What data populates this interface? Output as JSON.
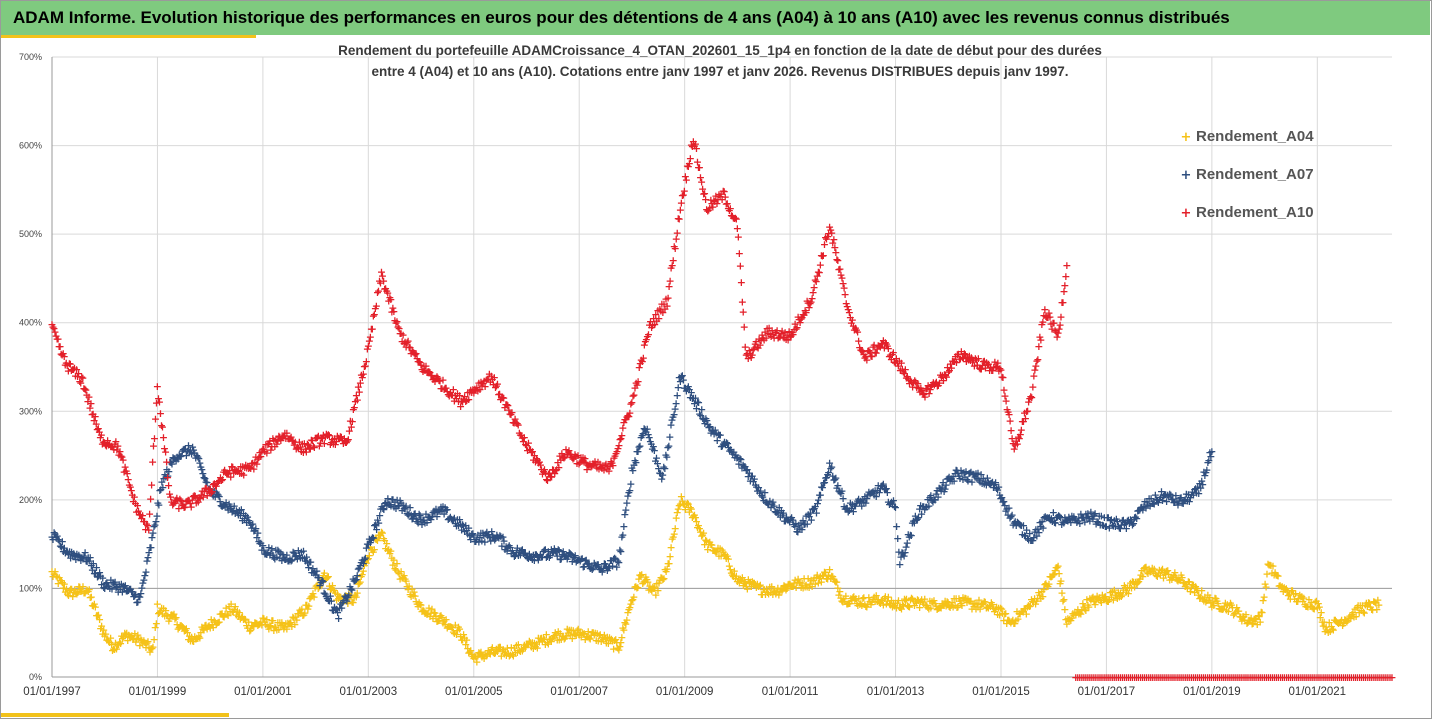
{
  "header": {
    "title": "ADAM Informe. Evolution historique des performances en euros pour des détentions de 4 ans (A04) à 10 ans (A10) avec les revenus connus distribués"
  },
  "colors": {
    "header_bg": "#7fca7f",
    "accent": "#f2c21b",
    "A04": "#f5c218",
    "A07": "#2f4f7f",
    "A10": "#e3202a"
  },
  "chart_data": {
    "type": "scatter",
    "title_lines": [
      "Rendement du portefeuille ADAMCroissance_4_OTAN_202601_15_1p4  en fonction de la date de début pour des durées",
      "entre 4 (A04) et 10 ans (A10). Cotations entre janv 1997 et janv 2026. Revenus DISTRIBUES depuis janv 1997."
    ],
    "x_type": "date",
    "xlim": [
      "1997-01-01",
      "2022-06-01"
    ],
    "x_tick_labels": [
      "01/01/1997",
      "01/01/1999",
      "01/01/2001",
      "01/01/2003",
      "01/01/2005",
      "01/01/2007",
      "01/01/2009",
      "01/01/2011",
      "01/01/2013",
      "01/01/2015",
      "01/01/2017",
      "01/01/2019",
      "01/01/2021"
    ],
    "ylim": [
      0,
      700
    ],
    "y_tick_values": [
      0,
      100,
      200,
      300,
      400,
      500,
      600,
      700
    ],
    "y_tick_labels": [
      "0%",
      "100%",
      "200%",
      "300%",
      "400%",
      "500%",
      "600%",
      "700%"
    ],
    "reference_line": 100,
    "grid": true,
    "legend_position": "right",
    "marker": "+",
    "series": [
      {
        "name": "Rendement_A04",
        "key": "A04",
        "points": [
          [
            "1997-01",
            118
          ],
          [
            "1997-05",
            95
          ],
          [
            "1997-09",
            100
          ],
          [
            "1998-01",
            48
          ],
          [
            "1998-03",
            35
          ],
          [
            "1998-06",
            48
          ],
          [
            "1998-09",
            42
          ],
          [
            "1998-12",
            30
          ],
          [
            "1999-01",
            78
          ],
          [
            "1999-05",
            65
          ],
          [
            "1999-09",
            42
          ],
          [
            "2000-01",
            60
          ],
          [
            "2000-06",
            78
          ],
          [
            "2000-10",
            58
          ],
          [
            "2001-01",
            62
          ],
          [
            "2001-06",
            55
          ],
          [
            "2001-11",
            78
          ],
          [
            "2002-03",
            118
          ],
          [
            "2002-06",
            90
          ],
          [
            "2002-10",
            88
          ],
          [
            "2003-01",
            140
          ],
          [
            "2003-04",
            160
          ],
          [
            "2003-08",
            118
          ],
          [
            "2004-01",
            80
          ],
          [
            "2004-06",
            65
          ],
          [
            "2004-10",
            50
          ],
          [
            "2005-01",
            22
          ],
          [
            "2005-05",
            28
          ],
          [
            "2005-10",
            30
          ],
          [
            "2006-03",
            38
          ],
          [
            "2006-08",
            48
          ],
          [
            "2007-01",
            50
          ],
          [
            "2007-06",
            45
          ],
          [
            "2007-10",
            35
          ],
          [
            "2008-01",
            88
          ],
          [
            "2008-03",
            115
          ],
          [
            "2008-06",
            95
          ],
          [
            "2008-09",
            120
          ],
          [
            "2008-12",
            200
          ],
          [
            "2009-03",
            185
          ],
          [
            "2009-06",
            150
          ],
          [
            "2009-10",
            138
          ],
          [
            "2010-01",
            110
          ],
          [
            "2010-06",
            100
          ],
          [
            "2010-10",
            98
          ],
          [
            "2011-01",
            105
          ],
          [
            "2011-06",
            108
          ],
          [
            "2011-10",
            118
          ],
          [
            "2012-01",
            90
          ],
          [
            "2012-06",
            85
          ],
          [
            "2012-10",
            88
          ],
          [
            "2013-01",
            82
          ],
          [
            "2013-06",
            85
          ],
          [
            "2013-10",
            82
          ],
          [
            "2014-03",
            85
          ],
          [
            "2014-08",
            82
          ],
          [
            "2014-12",
            78
          ],
          [
            "2015-03",
            62
          ],
          [
            "2015-07",
            78
          ],
          [
            "2015-11",
            100
          ],
          [
            "2016-02",
            125
          ],
          [
            "2016-04",
            62
          ],
          [
            "2016-09",
            85
          ],
          [
            "2017-01",
            90
          ],
          [
            "2017-06",
            100
          ],
          [
            "2017-10",
            120
          ],
          [
            "2018-02",
            118
          ],
          [
            "2018-06",
            110
          ],
          [
            "2018-10",
            95
          ],
          [
            "2019-01",
            85
          ],
          [
            "2019-05",
            80
          ],
          [
            "2019-09",
            65
          ],
          [
            "2019-12",
            65
          ],
          [
            "2020-02",
            130
          ],
          [
            "2020-05",
            100
          ],
          [
            "2020-09",
            88
          ],
          [
            "2021-01",
            82
          ],
          [
            "2021-03",
            55
          ],
          [
            "2021-07",
            65
          ],
          [
            "2021-11",
            78
          ],
          [
            "2022-03",
            82
          ]
        ]
      },
      {
        "name": "Rendement_A07",
        "key": "A07",
        "points": [
          [
            "1997-01",
            160
          ],
          [
            "1997-05",
            140
          ],
          [
            "1997-09",
            135
          ],
          [
            "1998-01",
            105
          ],
          [
            "1998-05",
            102
          ],
          [
            "1998-09",
            88
          ],
          [
            "1998-12",
            160
          ],
          [
            "1999-02",
            218
          ],
          [
            "1999-05",
            250
          ],
          [
            "1999-09",
            258
          ],
          [
            "2000-01",
            210
          ],
          [
            "2000-06",
            190
          ],
          [
            "2000-10",
            178
          ],
          [
            "2001-01",
            145
          ],
          [
            "2001-06",
            135
          ],
          [
            "2001-10",
            140
          ],
          [
            "2002-02",
            110
          ],
          [
            "2002-06",
            70
          ],
          [
            "2002-10",
            110
          ],
          [
            "2003-01",
            148
          ],
          [
            "2003-05",
            200
          ],
          [
            "2003-08",
            195
          ],
          [
            "2004-01",
            178
          ],
          [
            "2004-06",
            188
          ],
          [
            "2004-10",
            172
          ],
          [
            "2005-01",
            158
          ],
          [
            "2005-06",
            160
          ],
          [
            "2005-10",
            142
          ],
          [
            "2006-03",
            138
          ],
          [
            "2006-08",
            140
          ],
          [
            "2007-01",
            132
          ],
          [
            "2007-06",
            122
          ],
          [
            "2007-10",
            132
          ],
          [
            "2008-01",
            232
          ],
          [
            "2008-04",
            285
          ],
          [
            "2008-08",
            225
          ],
          [
            "2008-12",
            340
          ],
          [
            "2009-03",
            315
          ],
          [
            "2009-07",
            280
          ],
          [
            "2009-11",
            258
          ],
          [
            "2010-03",
            235
          ],
          [
            "2010-07",
            205
          ],
          [
            "2010-11",
            185
          ],
          [
            "2011-03",
            168
          ],
          [
            "2011-07",
            190
          ],
          [
            "2011-10",
            240
          ],
          [
            "2012-02",
            190
          ],
          [
            "2012-06",
            200
          ],
          [
            "2012-10",
            215
          ],
          [
            "2013-01",
            190
          ],
          [
            "2013-02",
            130
          ],
          [
            "2013-06",
            185
          ],
          [
            "2013-10",
            205
          ],
          [
            "2014-03",
            230
          ],
          [
            "2014-08",
            225
          ],
          [
            "2014-12",
            215
          ],
          [
            "2015-04",
            175
          ],
          [
            "2015-08",
            158
          ],
          [
            "2015-12",
            182
          ],
          [
            "2016-04",
            175
          ],
          [
            "2016-09",
            182
          ],
          [
            "2017-01",
            175
          ],
          [
            "2017-06",
            172
          ],
          [
            "2017-10",
            195
          ],
          [
            "2018-02",
            205
          ],
          [
            "2018-06",
            198
          ],
          [
            "2018-10",
            210
          ],
          [
            "2019-01",
            255
          ]
        ]
      },
      {
        "name": "Rendement_A10",
        "key": "A10",
        "points": [
          [
            "1997-01",
            395
          ],
          [
            "1997-04",
            355
          ],
          [
            "1997-08",
            335
          ],
          [
            "1997-12",
            270
          ],
          [
            "1998-04",
            260
          ],
          [
            "1998-08",
            195
          ],
          [
            "1998-11",
            165
          ],
          [
            "1999-01",
            330
          ],
          [
            "1999-04",
            198
          ],
          [
            "1999-08",
            195
          ],
          [
            "2000-01",
            212
          ],
          [
            "2000-05",
            232
          ],
          [
            "2000-10",
            235
          ],
          [
            "2001-01",
            255
          ],
          [
            "2001-06",
            275
          ],
          [
            "2001-10",
            258
          ],
          [
            "2002-03",
            270
          ],
          [
            "2002-08",
            265
          ],
          [
            "2003-01",
            370
          ],
          [
            "2003-04",
            455
          ],
          [
            "2003-08",
            390
          ],
          [
            "2004-01",
            352
          ],
          [
            "2004-06",
            330
          ],
          [
            "2004-10",
            312
          ],
          [
            "2005-01",
            325
          ],
          [
            "2005-05",
            340
          ],
          [
            "2005-09",
            300
          ],
          [
            "2006-01",
            262
          ],
          [
            "2006-06",
            225
          ],
          [
            "2006-10",
            255
          ],
          [
            "2007-03",
            240
          ],
          [
            "2007-08",
            235
          ],
          [
            "2008-01",
            310
          ],
          [
            "2008-05",
            395
          ],
          [
            "2008-09",
            425
          ],
          [
            "2008-12",
            530
          ],
          [
            "2009-03",
            610
          ],
          [
            "2009-06",
            530
          ],
          [
            "2009-10",
            545
          ],
          [
            "2010-01",
            510
          ],
          [
            "2010-03",
            360
          ],
          [
            "2010-08",
            390
          ],
          [
            "2011-01",
            385
          ],
          [
            "2011-06",
            430
          ],
          [
            "2011-10",
            510
          ],
          [
            "2012-02",
            420
          ],
          [
            "2012-06",
            360
          ],
          [
            "2012-10",
            378
          ],
          [
            "2013-03",
            345
          ],
          [
            "2013-07",
            320
          ],
          [
            "2013-11",
            335
          ],
          [
            "2014-04",
            365
          ],
          [
            "2014-09",
            352
          ],
          [
            "2015-01",
            350
          ],
          [
            "2015-04",
            255
          ],
          [
            "2015-08",
            320
          ],
          [
            "2015-11",
            415
          ],
          [
            "2016-02",
            385
          ],
          [
            "2016-04",
            465
          ]
        ]
      }
    ],
    "zero_band": {
      "series": "Rendement_A10",
      "x_range": [
        "2016-06",
        "2022-06"
      ],
      "value": 0
    }
  }
}
